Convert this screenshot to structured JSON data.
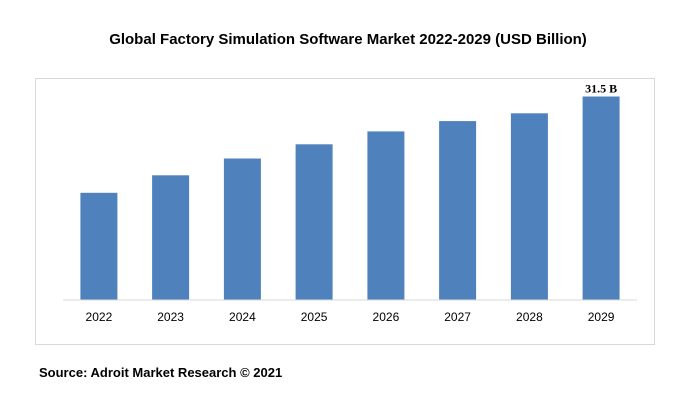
{
  "title": "Global Factory Simulation Software Market 2022-2029 (USD Billion)",
  "source": "Source: Adroit Market Research © 2021",
  "chart_data": {
    "type": "bar",
    "title": "Global Factory Simulation Software Market 2022-2029 (USD Billion)",
    "categories": [
      "2022",
      "2023",
      "2024",
      "2025",
      "2026",
      "2027",
      "2028",
      "2029"
    ],
    "values": [
      16.6,
      19.3,
      21.9,
      24.1,
      26.1,
      27.7,
      28.9,
      31.5
    ],
    "data_labels": [
      "",
      "",
      "",
      "",
      "",
      "",
      "",
      "31.5 B"
    ],
    "ylim": [
      0,
      32.2
    ],
    "bar_color": "#4f81bd",
    "grid": false,
    "legend": "none"
  }
}
